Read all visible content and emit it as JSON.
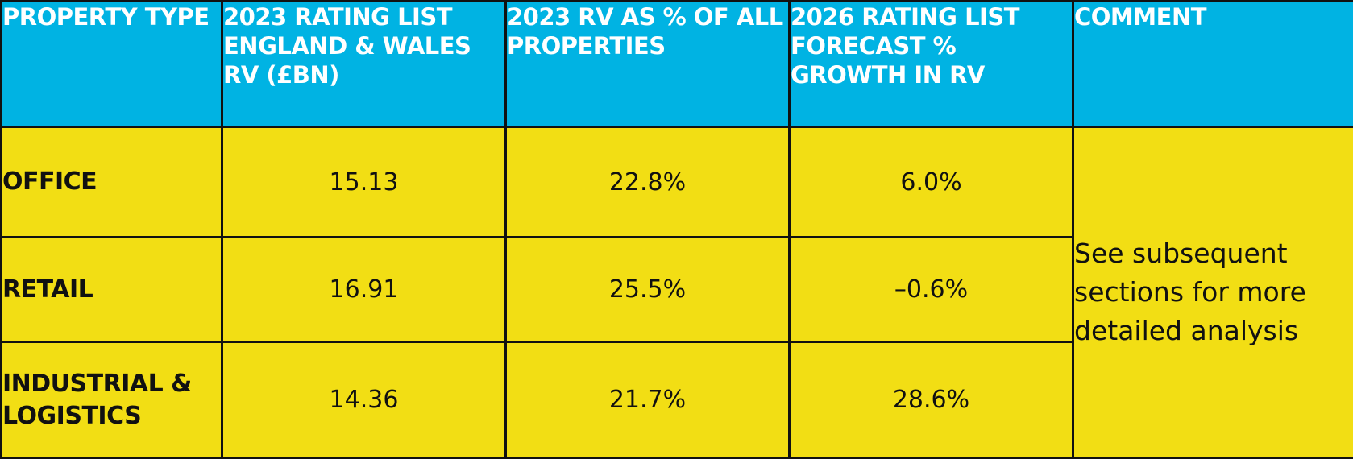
{
  "table": {
    "headers": [
      "PROPERTY TYPE",
      "2023 RATING LIST ENGLAND & WALES RV (£BN)",
      "2023 RV AS % OF ALL PROPERTIES",
      "2026 RATING LIST FORECAST % GROWTH IN RV",
      "COMMENT"
    ],
    "rows": [
      {
        "type": "OFFICE",
        "rv_2023": "15.13",
        "rv_pct": "22.8%",
        "growth_2026": "6.0%"
      },
      {
        "type": "RETAIL",
        "rv_2023": "16.91",
        "rv_pct": "25.5%",
        "growth_2026": "–0.6%"
      },
      {
        "type": "INDUSTRIAL & LOGISTICS",
        "rv_2023": "14.36",
        "rv_pct": "21.7%",
        "growth_2026": "28.6%"
      }
    ],
    "comment": "See subsequent sections for more detailed analysis"
  },
  "colors": {
    "header_bg": "#00b3e3",
    "body_bg": "#f2de14",
    "border": "#111111",
    "header_text": "#ffffff",
    "body_text": "#111111"
  }
}
